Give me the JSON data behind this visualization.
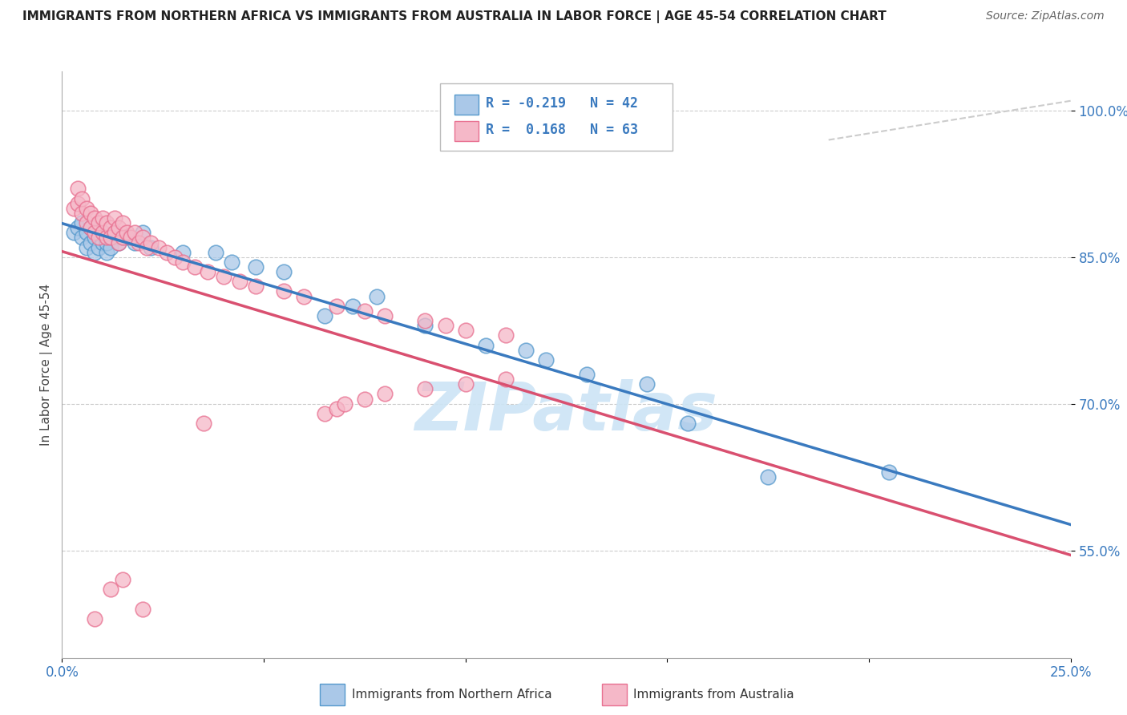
{
  "title": "IMMIGRANTS FROM NORTHERN AFRICA VS IMMIGRANTS FROM AUSTRALIA IN LABOR FORCE | AGE 45-54 CORRELATION CHART",
  "source": "Source: ZipAtlas.com",
  "xlabel_blue": "Immigrants from Northern Africa",
  "xlabel_pink": "Immigrants from Australia",
  "ylabel": "In Labor Force | Age 45-54",
  "xlim": [
    0.0,
    0.25
  ],
  "ylim": [
    0.44,
    1.04
  ],
  "xticks": [
    0.0,
    0.05,
    0.1,
    0.15,
    0.2,
    0.25
  ],
  "xtick_labels": [
    "0.0%",
    "",
    "",
    "",
    "",
    "25.0%"
  ],
  "yticks": [
    0.55,
    0.7,
    0.85,
    1.0
  ],
  "ytick_labels": [
    "55.0%",
    "70.0%",
    "85.0%",
    "100.0%"
  ],
  "grid_color": "#cccccc",
  "blue_dot_fill": "#aac8e8",
  "blue_dot_edge": "#5599cc",
  "pink_dot_fill": "#f5b8c8",
  "pink_dot_edge": "#e87090",
  "blue_line_color": "#3a7abf",
  "pink_line_color": "#d95070",
  "dash_line_color": "#cccccc",
  "watermark_color": "#cce4f5",
  "watermark": "ZIPatlas",
  "legend_text_color": "#3a7abf",
  "blue_R": -0.219,
  "blue_N": 42,
  "pink_R": 0.168,
  "pink_N": 63,
  "blue_dots_x": [
    0.003,
    0.004,
    0.005,
    0.005,
    0.006,
    0.006,
    0.007,
    0.007,
    0.008,
    0.008,
    0.009,
    0.009,
    0.01,
    0.01,
    0.011,
    0.011,
    0.012,
    0.012,
    0.013,
    0.014,
    0.015,
    0.016,
    0.018,
    0.02,
    0.022,
    0.03,
    0.038,
    0.042,
    0.048,
    0.055,
    0.065,
    0.072,
    0.078,
    0.09,
    0.105,
    0.115,
    0.12,
    0.13,
    0.145,
    0.155,
    0.175,
    0.205
  ],
  "blue_dots_y": [
    0.875,
    0.88,
    0.87,
    0.885,
    0.86,
    0.875,
    0.865,
    0.88,
    0.855,
    0.87,
    0.86,
    0.875,
    0.865,
    0.875,
    0.855,
    0.865,
    0.87,
    0.86,
    0.875,
    0.865,
    0.87,
    0.87,
    0.865,
    0.875,
    0.86,
    0.855,
    0.855,
    0.845,
    0.84,
    0.835,
    0.79,
    0.8,
    0.81,
    0.78,
    0.76,
    0.755,
    0.745,
    0.73,
    0.72,
    0.68,
    0.625,
    0.63
  ],
  "pink_dots_x": [
    0.003,
    0.004,
    0.004,
    0.005,
    0.005,
    0.006,
    0.006,
    0.007,
    0.007,
    0.008,
    0.008,
    0.009,
    0.009,
    0.01,
    0.01,
    0.011,
    0.011,
    0.012,
    0.012,
    0.013,
    0.013,
    0.014,
    0.014,
    0.015,
    0.015,
    0.016,
    0.017,
    0.018,
    0.019,
    0.02,
    0.021,
    0.022,
    0.024,
    0.026,
    0.028,
    0.03,
    0.033,
    0.036,
    0.04,
    0.044,
    0.048,
    0.055,
    0.06,
    0.068,
    0.075,
    0.08,
    0.09,
    0.095,
    0.1,
    0.11,
    0.02,
    0.035,
    0.065,
    0.068,
    0.07,
    0.075,
    0.08,
    0.09,
    0.1,
    0.11,
    0.015,
    0.012,
    0.008
  ],
  "pink_dots_y": [
    0.9,
    0.905,
    0.92,
    0.895,
    0.91,
    0.885,
    0.9,
    0.88,
    0.895,
    0.875,
    0.89,
    0.87,
    0.885,
    0.875,
    0.89,
    0.87,
    0.885,
    0.88,
    0.87,
    0.875,
    0.89,
    0.865,
    0.88,
    0.87,
    0.885,
    0.875,
    0.87,
    0.875,
    0.865,
    0.87,
    0.86,
    0.865,
    0.86,
    0.855,
    0.85,
    0.845,
    0.84,
    0.835,
    0.83,
    0.825,
    0.82,
    0.815,
    0.81,
    0.8,
    0.795,
    0.79,
    0.785,
    0.78,
    0.775,
    0.77,
    0.49,
    0.68,
    0.69,
    0.695,
    0.7,
    0.705,
    0.71,
    0.715,
    0.72,
    0.725,
    0.52,
    0.51,
    0.48
  ]
}
